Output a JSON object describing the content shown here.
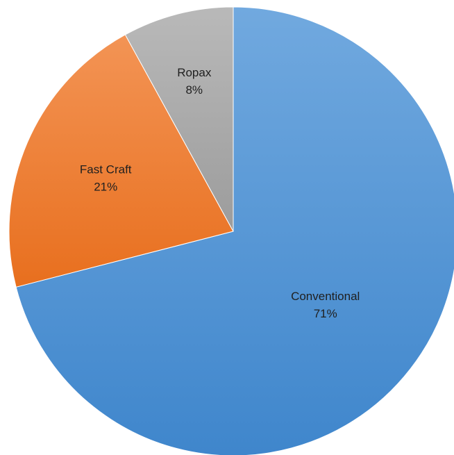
{
  "chart_data": {
    "type": "pie",
    "title": "",
    "start_angle_deg": 0,
    "direction": "clockwise",
    "legend": "none",
    "slices": [
      {
        "label": "Conventional",
        "value": 71,
        "value_label": "71%",
        "color": "#4a8fd3"
      },
      {
        "label": "Fast Craft",
        "value": 21,
        "value_label": "21%",
        "color": "#ee7a2a"
      },
      {
        "label": "Ropax",
        "value": 8,
        "value_label": "8%",
        "color": "#a5a5a5"
      }
    ]
  }
}
